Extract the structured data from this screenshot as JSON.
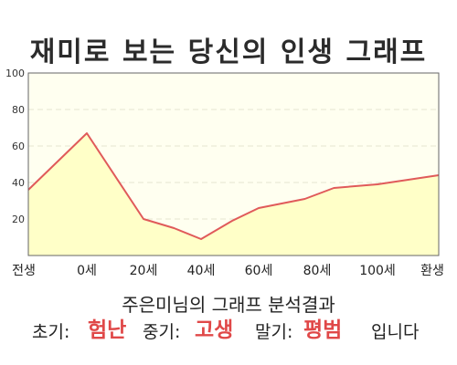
{
  "title": "재미로 보는 당신의 인생 그래프",
  "summary": "주은미님의 그래프 분석결과",
  "result": {
    "early_label": "초기:",
    "early_value": "험난",
    "middle_label": "중기:",
    "middle_value": "고생",
    "late_label": "말기:",
    "late_value": "평범",
    "ending": "입니다"
  },
  "colors": {
    "line": "#e05a5a",
    "fill": "#ffffc8",
    "plot_background": "#fffff0",
    "accent_text": "#e04848"
  },
  "chart_data": {
    "type": "area",
    "title": "재미로 보는 당신의 인생 그래프",
    "xlabel": "",
    "ylabel": "",
    "x_ticks": [
      "전생",
      "0세",
      "20세",
      "40세",
      "60세",
      "80세",
      "100세",
      "환생"
    ],
    "y_ticks": [
      "20",
      "40",
      "60",
      "80",
      "100"
    ],
    "ylim": [
      0,
      100
    ],
    "grid": true,
    "series": [
      {
        "points": [
          {
            "x": "전생",
            "y": 36
          },
          {
            "x": "0세",
            "y": 67
          },
          {
            "x": "20세",
            "y": 20
          },
          {
            "x": "30세",
            "y": 15
          },
          {
            "x": "40세",
            "y": 9
          },
          {
            "x": "50세",
            "y": 19
          },
          {
            "x": "60세",
            "y": 26
          },
          {
            "x": "75세",
            "y": 31
          },
          {
            "x": "85세",
            "y": 37
          },
          {
            "x": "100세",
            "y": 39
          },
          {
            "x": "환생",
            "y": 44
          }
        ]
      }
    ]
  }
}
